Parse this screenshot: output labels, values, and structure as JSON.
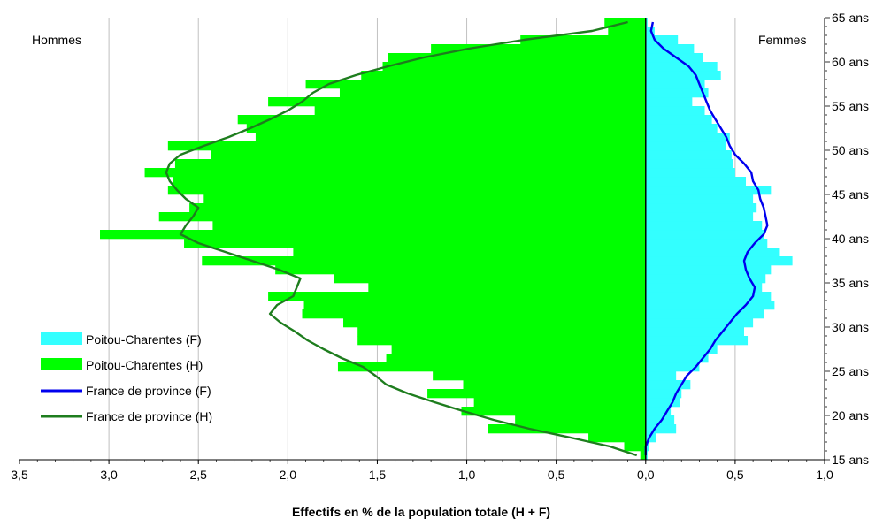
{
  "chart_data": {
    "type": "bar",
    "subtype": "population-pyramid",
    "orientation": "horizontal",
    "left_label": "Hommes",
    "right_label": "Femmes",
    "xlabel": "Effectifs en % de la population totale (H + F)",
    "xlim": [
      -3.5,
      1.0
    ],
    "ylim": [
      15,
      65
    ],
    "x_ticks": [
      {
        "value": -3.5,
        "label": "3,5"
      },
      {
        "value": -3.0,
        "label": "3,0"
      },
      {
        "value": -2.5,
        "label": "2,5"
      },
      {
        "value": -2.0,
        "label": "2,0"
      },
      {
        "value": -1.5,
        "label": "1,5"
      },
      {
        "value": -1.0,
        "label": "1,0"
      },
      {
        "value": -0.5,
        "label": "0,5"
      },
      {
        "value": 0.0,
        "label": "0,0"
      },
      {
        "value": 0.5,
        "label": "0,5"
      },
      {
        "value": 1.0,
        "label": "1,0"
      }
    ],
    "y_ticks": [
      {
        "value": 15,
        "label": "15 ans"
      },
      {
        "value": 20,
        "label": "20 ans"
      },
      {
        "value": 25,
        "label": "25 ans"
      },
      {
        "value": 30,
        "label": "30 ans"
      },
      {
        "value": 35,
        "label": "35 ans"
      },
      {
        "value": 40,
        "label": "40 ans"
      },
      {
        "value": 45,
        "label": "45 ans"
      },
      {
        "value": 50,
        "label": "50 ans"
      },
      {
        "value": 55,
        "label": "55 ans"
      },
      {
        "value": 60,
        "label": "60 ans"
      },
      {
        "value": 65,
        "label": "65 ans"
      }
    ],
    "vertical_grid": true,
    "legend_position": "lower-left",
    "ages": [
      15,
      16,
      17,
      18,
      19,
      20,
      21,
      22,
      23,
      24,
      25,
      26,
      27,
      28,
      29,
      30,
      31,
      32,
      33,
      34,
      35,
      36,
      37,
      38,
      39,
      40,
      41,
      42,
      43,
      44,
      45,
      46,
      47,
      48,
      49,
      50,
      51,
      52,
      53,
      54,
      55,
      56,
      57,
      58,
      59,
      60,
      61,
      62,
      63,
      64
    ],
    "series": [
      {
        "name": "Poitou-Charentes (F)",
        "kind": "bar",
        "color": "#33ffff",
        "values": [
          0.01,
          0.02,
          0.06,
          0.17,
          0.16,
          0.14,
          0.19,
          0.2,
          0.25,
          0.17,
          0.3,
          0.35,
          0.4,
          0.57,
          0.55,
          0.6,
          0.66,
          0.72,
          0.7,
          0.65,
          0.67,
          0.7,
          0.82,
          0.75,
          0.68,
          0.66,
          0.65,
          0.6,
          0.62,
          0.6,
          0.7,
          0.56,
          0.5,
          0.49,
          0.48,
          0.45,
          0.47,
          0.4,
          0.37,
          0.33,
          0.26,
          0.35,
          0.33,
          0.42,
          0.4,
          0.32,
          0.27,
          0.18,
          0.05,
          0.01
        ]
      },
      {
        "name": "Poitou-Charentes (H)",
        "kind": "bar",
        "color": "#00ff00",
        "values": [
          -0.03,
          -0.12,
          -0.32,
          -0.88,
          -0.73,
          -1.03,
          -0.96,
          -1.22,
          -1.02,
          -1.19,
          -1.72,
          -1.45,
          -1.42,
          -1.61,
          -1.61,
          -1.69,
          -1.92,
          -1.91,
          -2.11,
          -1.55,
          -1.74,
          -2.07,
          -2.48,
          -1.97,
          -2.58,
          -3.05,
          -2.42,
          -2.72,
          -2.55,
          -2.47,
          -2.67,
          -2.64,
          -2.8,
          -2.63,
          -2.43,
          -2.67,
          -2.18,
          -2.23,
          -2.28,
          -1.85,
          -2.11,
          -1.71,
          -1.9,
          -1.59,
          -1.47,
          -1.44,
          -1.2,
          -0.7,
          -0.21,
          -0.23
        ]
      },
      {
        "name": "France de province (F)",
        "kind": "line",
        "color": "#0000ee",
        "x": [
          0.0,
          0.0,
          0.02,
          0.05,
          0.09,
          0.12,
          0.15,
          0.17,
          0.2,
          0.23,
          0.28,
          0.32,
          0.36,
          0.39,
          0.43,
          0.47,
          0.51,
          0.56,
          0.6,
          0.61,
          0.58,
          0.56,
          0.55,
          0.57,
          0.61,
          0.66,
          0.68,
          0.67,
          0.66,
          0.64,
          0.63,
          0.6,
          0.59,
          0.55,
          0.5,
          0.47,
          0.45,
          0.42,
          0.39,
          0.36,
          0.34,
          0.32,
          0.3,
          0.28,
          0.24,
          0.17,
          0.1,
          0.05,
          0.03,
          0.04
        ],
        "y": [
          15.5,
          16.5,
          17.5,
          18.5,
          19.5,
          20.5,
          21.5,
          22.5,
          23.5,
          24.5,
          25.5,
          26.5,
          27.5,
          28.5,
          29.5,
          30.5,
          31.5,
          32.5,
          33.5,
          34.5,
          35.5,
          36.5,
          37.5,
          38.5,
          39.5,
          40.5,
          41.5,
          42.5,
          43.5,
          44.5,
          45.5,
          46.5,
          47.5,
          48.5,
          49.5,
          50.5,
          51.5,
          52.5,
          53.5,
          54.5,
          55.5,
          56.5,
          57.5,
          58.5,
          59.5,
          60.5,
          61.5,
          62.5,
          63.5,
          64.5
        ]
      },
      {
        "name": "France de province (H)",
        "kind": "line",
        "color": "#1e7d1e",
        "x": [
          -0.05,
          -0.2,
          -0.42,
          -0.65,
          -0.85,
          -1.02,
          -1.18,
          -1.33,
          -1.45,
          -1.51,
          -1.58,
          -1.7,
          -1.8,
          -1.89,
          -1.96,
          -2.04,
          -2.1,
          -2.06,
          -1.97,
          -1.95,
          -1.93,
          -2.05,
          -2.2,
          -2.35,
          -2.5,
          -2.6,
          -2.57,
          -2.53,
          -2.5,
          -2.57,
          -2.62,
          -2.66,
          -2.68,
          -2.66,
          -2.6,
          -2.47,
          -2.33,
          -2.21,
          -2.1,
          -2.0,
          -1.92,
          -1.86,
          -1.77,
          -1.62,
          -1.44,
          -1.24,
          -0.99,
          -0.68,
          -0.3,
          -0.1
        ],
        "y": [
          15.5,
          16.5,
          17.5,
          18.5,
          19.5,
          20.5,
          21.5,
          22.5,
          23.5,
          24.5,
          25.5,
          26.5,
          27.5,
          28.5,
          29.5,
          30.5,
          31.5,
          32.5,
          33.5,
          34.5,
          35.5,
          36.5,
          37.5,
          38.5,
          39.5,
          40.5,
          41.5,
          42.5,
          43.5,
          44.5,
          45.5,
          46.5,
          47.5,
          48.5,
          49.5,
          50.5,
          51.5,
          52.5,
          53.5,
          54.5,
          55.5,
          56.5,
          57.5,
          58.5,
          59.5,
          60.5,
          61.5,
          62.5,
          63.5,
          64.5
        ]
      }
    ]
  }
}
